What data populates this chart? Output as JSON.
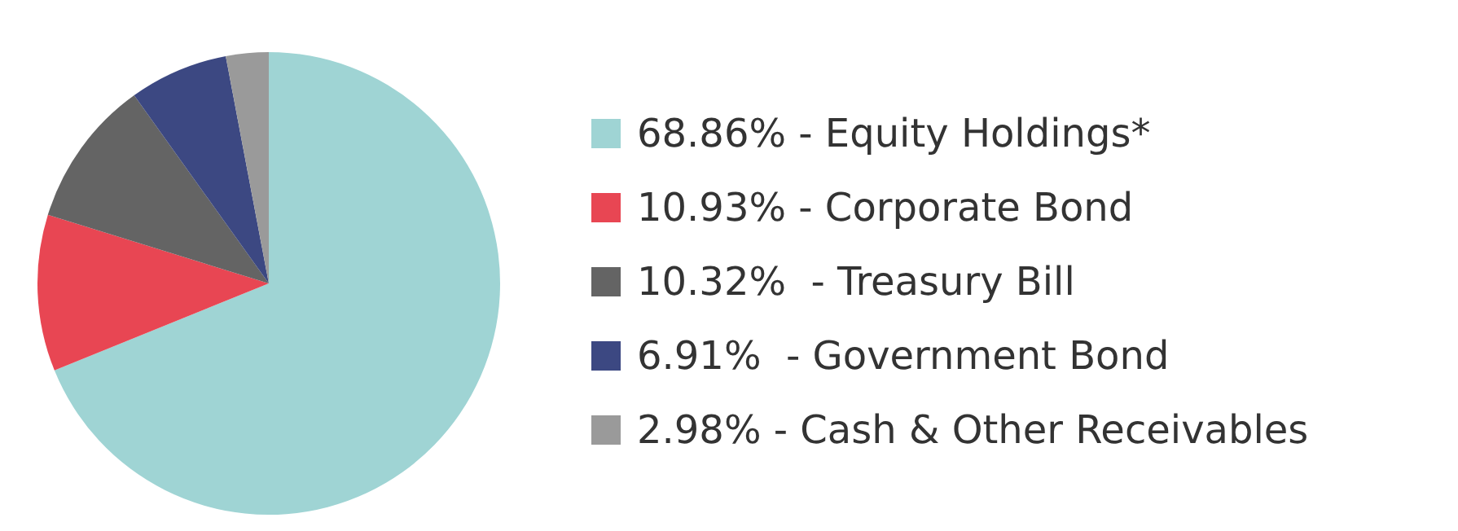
{
  "chart_data": {
    "type": "pie",
    "categories": [
      "68.86% - Equity Holdings*",
      "10.93% - Corporate Bond",
      "10.32%  - Treasury Bill",
      "6.91%  - Government Bond",
      "2.98% - Cash & Other Receivables"
    ],
    "values": [
      68.86,
      10.93,
      10.32,
      6.91,
      2.98
    ],
    "colors": [
      "#9fd4d4",
      "#e84653",
      "#646464",
      "#3c4882",
      "#9a9a9a"
    ],
    "legend": "right"
  }
}
